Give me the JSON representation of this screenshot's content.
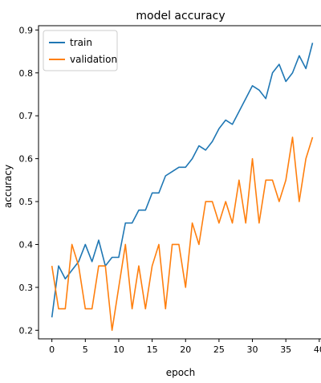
{
  "chart_data": {
    "type": "line",
    "title": "model accuracy",
    "xlabel": "epoch",
    "ylabel": "accuracy",
    "xlim": [
      -2,
      40.5
    ],
    "ylim": [
      0.18,
      0.91
    ],
    "xticks": [
      0,
      5,
      10,
      15,
      20,
      25,
      30,
      35,
      40
    ],
    "yticks": [
      0.2,
      0.3,
      0.4,
      0.5,
      0.6,
      0.7,
      0.8,
      0.9
    ],
    "grid": false,
    "legend_position": "top-left",
    "x": [
      0,
      1,
      2,
      3,
      4,
      5,
      6,
      7,
      8,
      9,
      10,
      11,
      12,
      13,
      14,
      15,
      16,
      17,
      18,
      19,
      20,
      21,
      22,
      23,
      24,
      25,
      26,
      27,
      28,
      29,
      30,
      31,
      32,
      33,
      34,
      35,
      36,
      37,
      38,
      39
    ],
    "series": [
      {
        "name": "train",
        "color": "#1f77b4",
        "values": [
          0.23,
          0.35,
          0.32,
          0.34,
          0.36,
          0.4,
          0.36,
          0.41,
          0.35,
          0.37,
          0.37,
          0.45,
          0.45,
          0.48,
          0.48,
          0.52,
          0.52,
          0.56,
          0.57,
          0.58,
          0.58,
          0.6,
          0.63,
          0.62,
          0.64,
          0.67,
          0.69,
          0.68,
          0.71,
          0.74,
          0.77,
          0.76,
          0.74,
          0.8,
          0.82,
          0.78,
          0.8,
          0.84,
          0.81,
          0.87
        ]
      },
      {
        "name": "validation",
        "color": "#ff7f0e",
        "values": [
          0.35,
          0.25,
          0.25,
          0.4,
          0.35,
          0.25,
          0.25,
          0.35,
          0.35,
          0.2,
          0.3,
          0.4,
          0.25,
          0.35,
          0.25,
          0.35,
          0.4,
          0.25,
          0.4,
          0.4,
          0.3,
          0.45,
          0.4,
          0.5,
          0.5,
          0.45,
          0.5,
          0.45,
          0.55,
          0.45,
          0.6,
          0.45,
          0.55,
          0.55,
          0.5,
          0.55,
          0.65,
          0.5,
          0.6,
          0.65
        ]
      }
    ]
  }
}
